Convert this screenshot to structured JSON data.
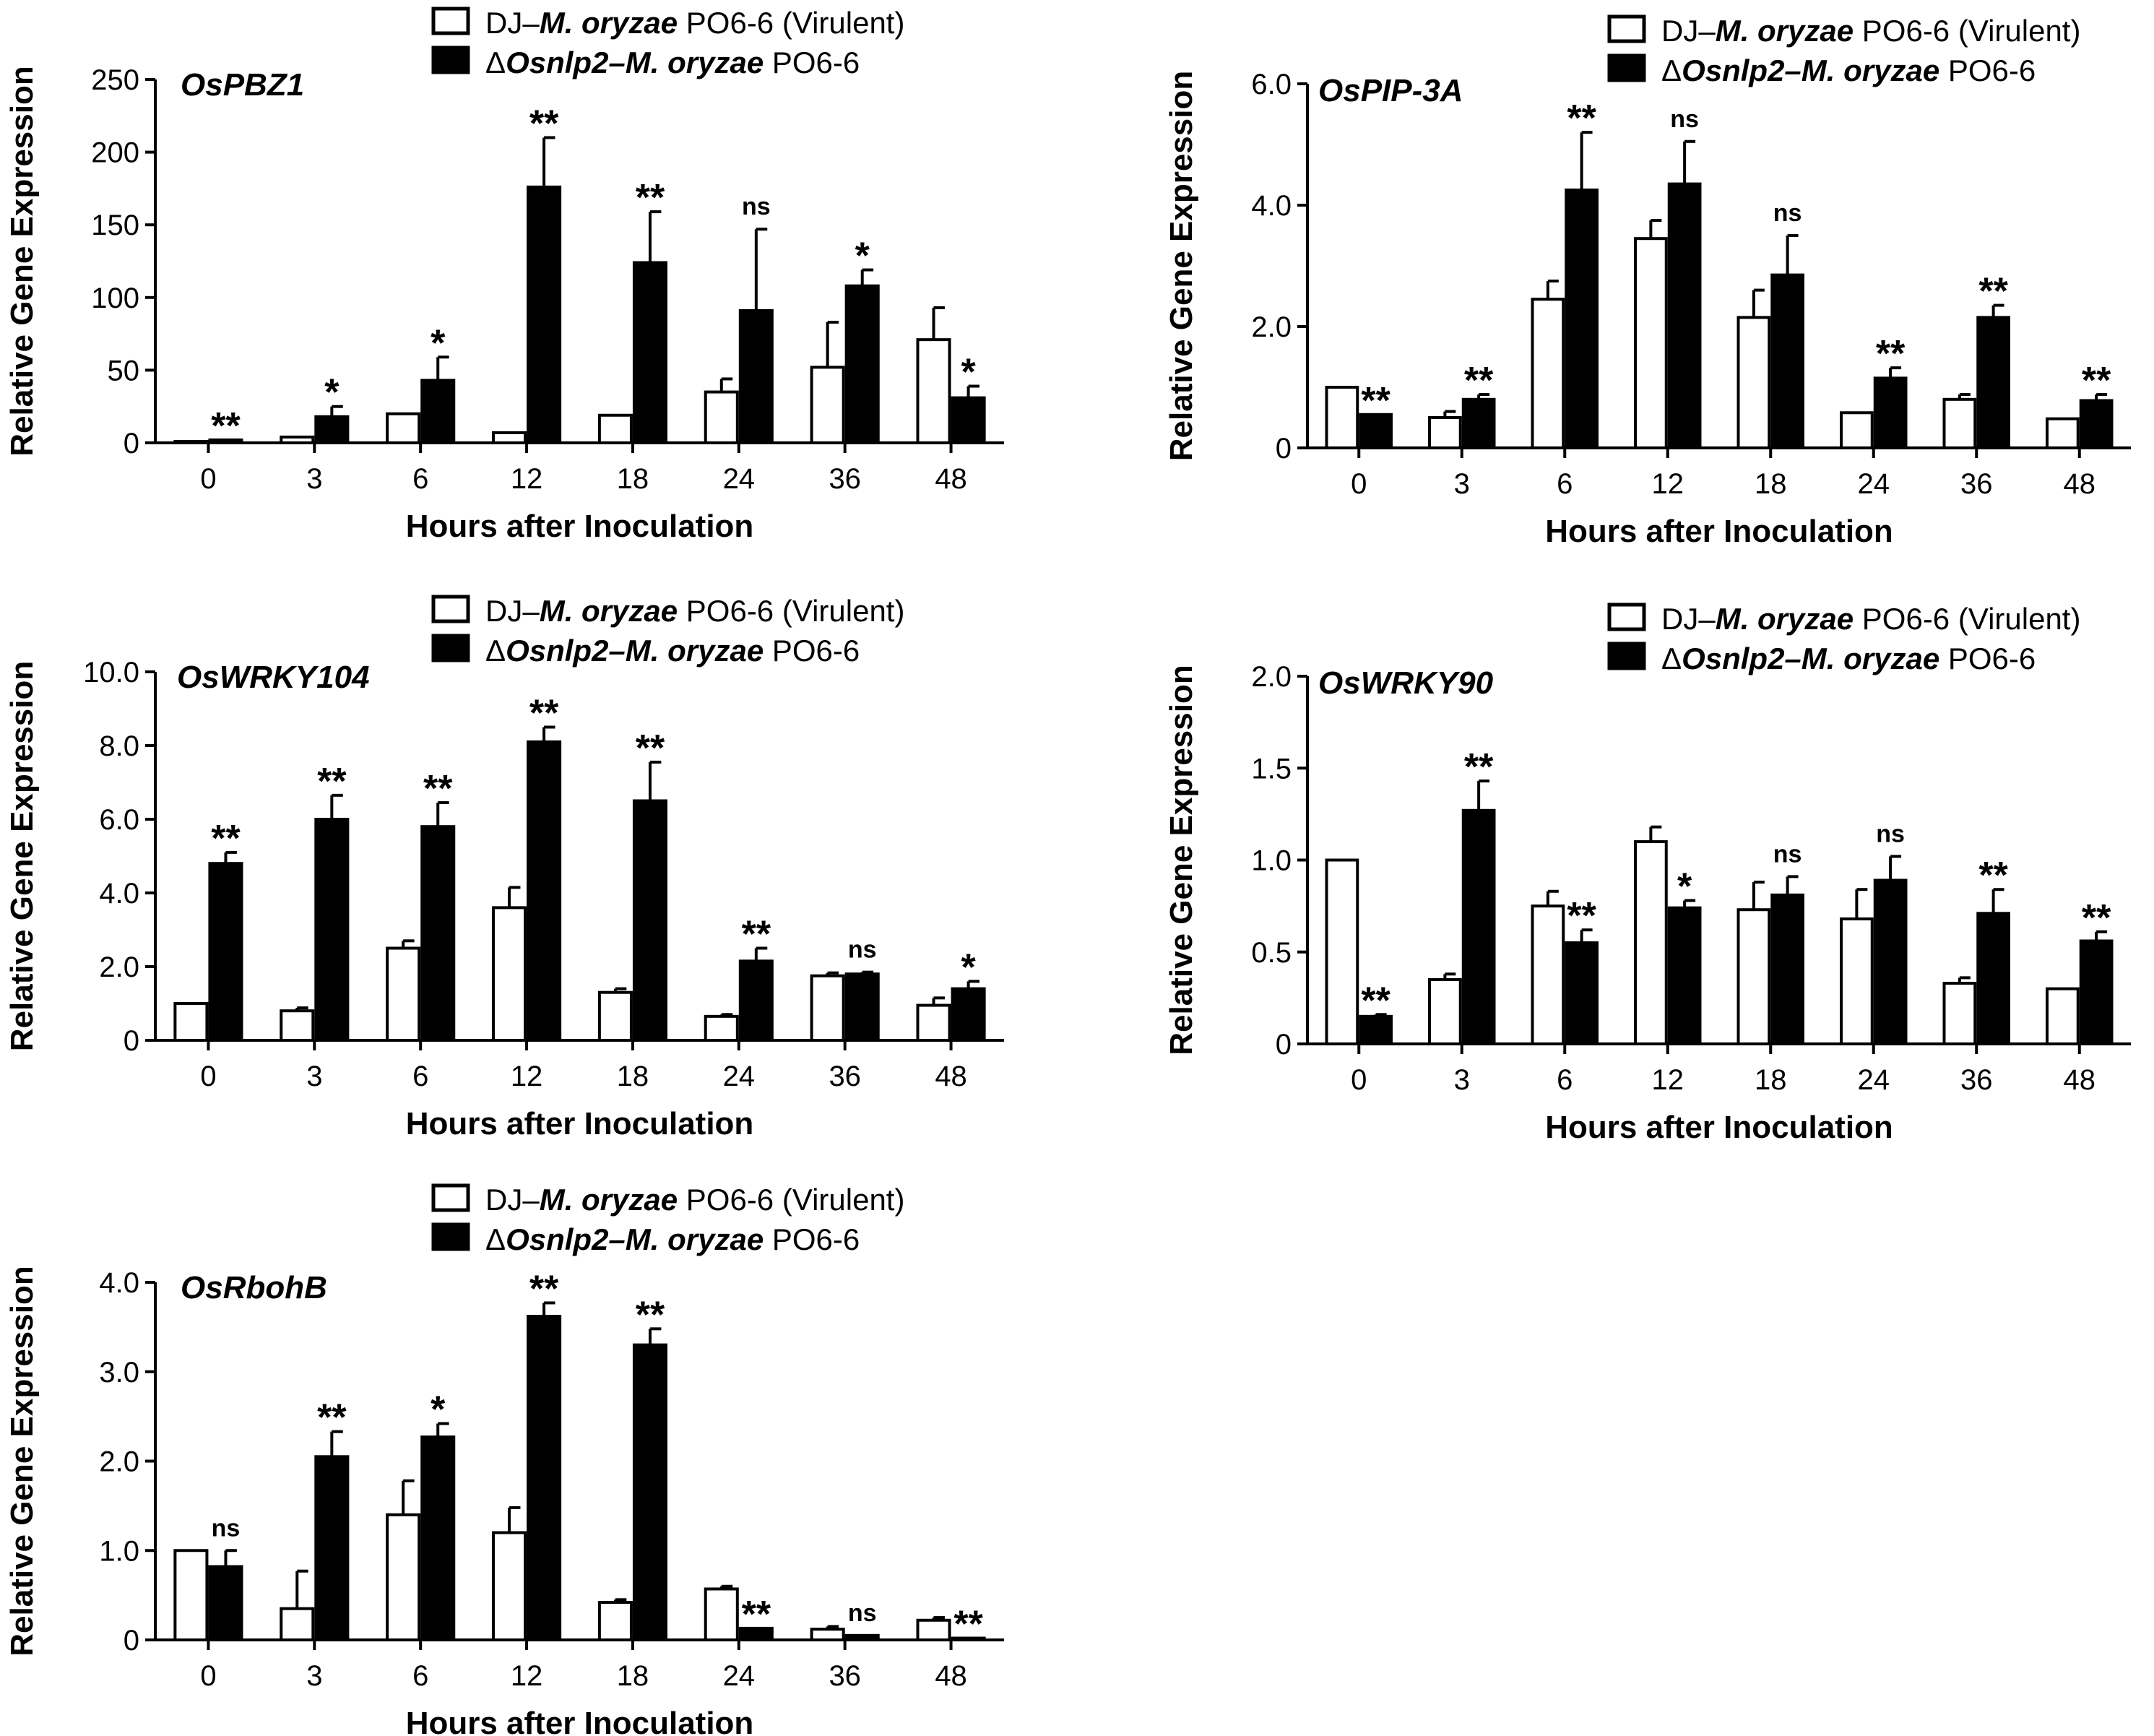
{
  "chart_data": [
    {
      "type": "bar",
      "title": "OsPBZ1",
      "xlabel": "Hours after Inoculation",
      "ylabel": "Relative Gene  Expression",
      "categories": [
        "0",
        "3",
        "6",
        "12",
        "18",
        "24",
        "36",
        "48"
      ],
      "ylim": [
        0,
        250
      ],
      "yticks": [
        "0",
        "50",
        "100",
        "150",
        "200",
        "250"
      ],
      "series": [
        {
          "name": "DJ–M. oryzae PO6-6 (Virulent)",
          "fill": "#ffffff",
          "values": [
            1,
            4,
            20,
            7,
            19,
            35,
            52,
            71
          ],
          "errors": [
            0,
            0,
            0,
            0,
            0,
            9,
            31,
            22
          ]
        },
        {
          "name": "ΔOsnlp2–M. oryzae PO6-6",
          "fill": "#000000",
          "values": [
            2,
            18,
            43,
            176,
            124,
            91,
            108,
            31
          ],
          "errors": [
            0,
            7,
            16,
            34,
            35,
            56,
            11,
            8
          ]
        }
      ],
      "significance": [
        "**",
        "*",
        "*",
        "**",
        "**",
        "ns",
        "*",
        "*"
      ]
    },
    {
      "type": "bar",
      "title": "OsPIP-3A",
      "xlabel": "Hours after Inoculation",
      "ylabel": "Relative Gene  Expression",
      "categories": [
        "0",
        "3",
        "6",
        "12",
        "18",
        "24",
        "36",
        "48"
      ],
      "ylim": [
        0,
        6
      ],
      "yticks": [
        "0",
        "2.0",
        "4.0",
        "6.0"
      ],
      "series": [
        {
          "name": "DJ–M. oryzae PO6-6 (Virulent)",
          "fill": "#ffffff",
          "values": [
            1.0,
            0.5,
            2.45,
            3.45,
            2.15,
            0.58,
            0.8,
            0.48
          ],
          "errors": [
            0,
            0.1,
            0.3,
            0.3,
            0.45,
            0,
            0.08,
            0
          ]
        },
        {
          "name": "ΔOsnlp2–M. oryzae PO6-6",
          "fill": "#000000",
          "values": [
            0.55,
            0.8,
            4.25,
            4.35,
            2.85,
            1.15,
            2.15,
            0.78
          ],
          "errors": [
            0,
            0.08,
            0.95,
            0.7,
            0.65,
            0.17,
            0.2,
            0.1
          ]
        }
      ],
      "significance": [
        "**",
        "**",
        "**",
        "ns",
        "ns",
        "**",
        "**",
        "**"
      ]
    },
    {
      "type": "bar",
      "title": "OsWRKY104",
      "xlabel": "Hours after Inoculation",
      "ylabel": "Relative Gene Expression",
      "categories": [
        "0",
        "3",
        "6",
        "12",
        "18",
        "24",
        "36",
        "48"
      ],
      "ylim": [
        0,
        10
      ],
      "yticks": [
        "0",
        "2.0",
        "4.0",
        "6.0",
        "8.0",
        "10.0"
      ],
      "series": [
        {
          "name": "DJ–M. oryzae PO6-6 (Virulent)",
          "fill": "#ffffff",
          "values": [
            1.0,
            0.8,
            2.5,
            3.6,
            1.3,
            0.65,
            1.75,
            0.95
          ],
          "errors": [
            0,
            0.08,
            0.2,
            0.55,
            0.1,
            0.05,
            0.08,
            0.2
          ]
        },
        {
          "name": "ΔOsnlp2–M. oryzae PO6-6",
          "fill": "#000000",
          "values": [
            4.8,
            6.0,
            5.8,
            8.1,
            6.5,
            2.15,
            1.8,
            1.4
          ],
          "errors": [
            0.3,
            0.65,
            0.65,
            0.4,
            1.05,
            0.35,
            0.05,
            0.2
          ]
        }
      ],
      "significance": [
        "**",
        "**",
        "**",
        "**",
        "**",
        "**",
        "ns",
        "*"
      ]
    },
    {
      "type": "bar",
      "title": "OsWRKY90",
      "xlabel": "Hours after Inoculation",
      "ylabel": "Relative Gene Expression",
      "categories": [
        "0",
        "3",
        "6",
        "12",
        "18",
        "24",
        "36",
        "48"
      ],
      "ylim": [
        0,
        2
      ],
      "yticks": [
        "0",
        "0.5",
        "1.0",
        "1.5",
        "2.0"
      ],
      "series": [
        {
          "name": "DJ–M. oryzae PO6-6 (Virulent)",
          "fill": "#ffffff",
          "values": [
            1.0,
            0.35,
            0.75,
            1.1,
            0.73,
            0.68,
            0.33,
            0.3
          ],
          "errors": [
            0,
            0.03,
            0.08,
            0.08,
            0.15,
            0.16,
            0.03,
            0
          ]
        },
        {
          "name": "ΔOsnlp2–M. oryzae PO6-6",
          "fill": "#000000",
          "values": [
            0.15,
            1.27,
            0.55,
            0.74,
            0.81,
            0.89,
            0.71,
            0.56
          ],
          "errors": [
            0.01,
            0.16,
            0.07,
            0.04,
            0.1,
            0.13,
            0.13,
            0.05
          ]
        }
      ],
      "significance": [
        "**",
        "**",
        "**",
        "*",
        "ns",
        "ns",
        "**",
        "**"
      ]
    },
    {
      "type": "bar",
      "title": "OsRbohB",
      "xlabel": "Hours after Inoculation",
      "ylabel": "Relative Gene Expression",
      "categories": [
        "0",
        "3",
        "6",
        "12",
        "18",
        "24",
        "36",
        "48"
      ],
      "ylim": [
        0,
        4
      ],
      "yticks": [
        "0",
        "1.0",
        "2.0",
        "3.0",
        "4.0"
      ],
      "series": [
        {
          "name": "DJ–M. oryzae PO6-6 (Virulent)",
          "fill": "#ffffff",
          "values": [
            1.0,
            0.35,
            1.4,
            1.2,
            0.42,
            0.57,
            0.12,
            0.22
          ],
          "errors": [
            0,
            0.42,
            0.38,
            0.28,
            0.03,
            0.03,
            0.03,
            0.03
          ]
        },
        {
          "name": "ΔOsnlp2–M. oryzae PO6-6",
          "fill": "#000000",
          "values": [
            0.82,
            2.05,
            2.27,
            3.62,
            3.3,
            0.13,
            0.05,
            0.02
          ],
          "errors": [
            0.18,
            0.28,
            0.15,
            0.15,
            0.18,
            0,
            0,
            0
          ]
        }
      ],
      "significance": [
        "ns",
        "**",
        "*",
        "**",
        "**",
        "**",
        "ns",
        "**"
      ]
    }
  ],
  "legend": {
    "virulent_prefix": "DJ–",
    "virulent_italic": "M. oryzae",
    "virulent_suffix": " PO6-6 (Virulent)",
    "mutant_prefix": "Δ",
    "mutant_italic": "Osnlp2–M. oryzae",
    "mutant_suffix": " PO6-6"
  }
}
